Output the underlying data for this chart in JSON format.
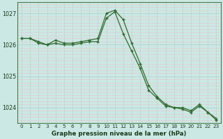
{
  "hours": [
    0,
    1,
    2,
    3,
    4,
    5,
    6,
    7,
    8,
    9,
    10,
    11,
    12,
    13,
    14,
    15,
    16,
    17,
    18,
    19,
    20,
    21,
    22,
    23
  ],
  "series1": [
    1026.2,
    1026.2,
    1026.1,
    1026.0,
    1026.15,
    1026.05,
    1026.05,
    1026.1,
    1026.15,
    1026.2,
    1027.0,
    1027.1,
    1026.8,
    1026.05,
    1025.4,
    1024.7,
    1024.35,
    1024.1,
    1024.0,
    1024.0,
    1023.9,
    1024.1,
    1023.85,
    1023.65
  ],
  "series2": [
    1026.2,
    1026.2,
    1026.05,
    1026.0,
    1026.05,
    1026.0,
    1026.0,
    1026.05,
    1026.1,
    1026.1,
    1026.85,
    1027.05,
    1026.35,
    1025.8,
    1025.25,
    1024.55,
    1024.3,
    1024.05,
    1024.0,
    1023.95,
    1023.85,
    1024.05,
    1023.85,
    1023.6
  ],
  "line_color": "#2d6a2d",
  "bg_color": "#cce8e4",
  "grid_color": "#b8d4d0",
  "grid_pink": "#e8c8c8",
  "xlabel": "Graphe pression niveau de la mer (hPa)",
  "ylim": [
    1023.5,
    1027.35
  ],
  "yticks": [
    1024,
    1025,
    1026,
    1027
  ],
  "xticks": [
    0,
    1,
    2,
    3,
    4,
    5,
    6,
    7,
    8,
    9,
    10,
    11,
    12,
    13,
    14,
    15,
    16,
    17,
    18,
    19,
    20,
    21,
    22,
    23
  ]
}
